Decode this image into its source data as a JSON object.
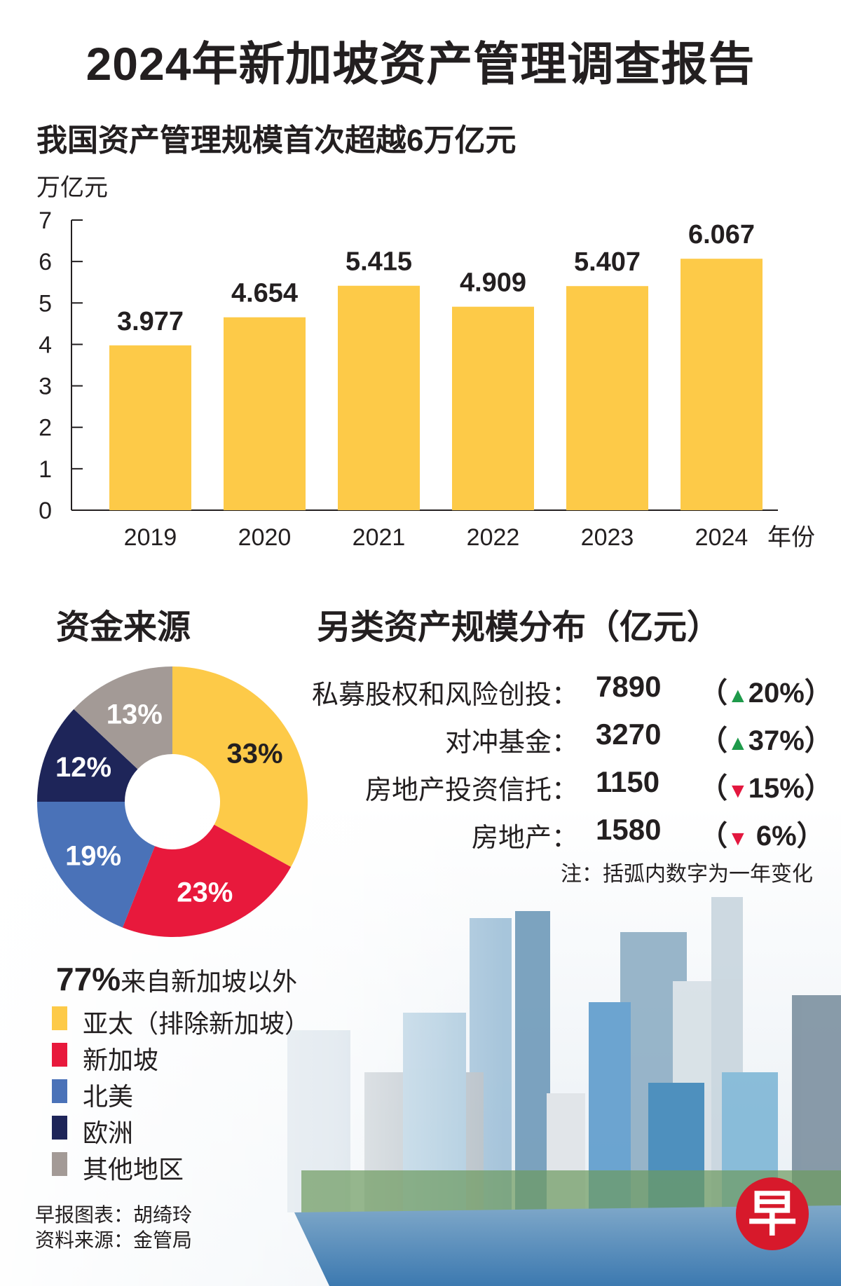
{
  "title": "2024年新加坡资产管理调查报告",
  "chart_data": [
    {
      "type": "bar",
      "title": "我国资产管理规模首次超越6万亿元",
      "ylabel": "万亿元",
      "xlabel": "年份",
      "categories": [
        "2019",
        "2020",
        "2021",
        "2022",
        "2023",
        "2024"
      ],
      "values": [
        3.977,
        4.654,
        5.415,
        4.909,
        5.407,
        6.067
      ],
      "value_labels": [
        "3.977",
        "4.654",
        "5.415",
        "4.909",
        "5.407",
        "6.067"
      ],
      "yticks": [
        "0",
        "1",
        "2",
        "3",
        "4",
        "5",
        "6",
        "7"
      ],
      "ylim": [
        0,
        7
      ],
      "bar_color": "#fdca48",
      "grid": false
    },
    {
      "type": "pie",
      "title": "资金来源",
      "categories": [
        "亚太（排除新加坡）",
        "新加坡",
        "北美",
        "欧洲",
        "其他地区"
      ],
      "values": [
        33,
        23,
        19,
        12,
        13
      ],
      "value_labels": [
        "33%",
        "23%",
        "19%",
        "12%",
        "13%"
      ],
      "colors": [
        "#fdca48",
        "#e8193c",
        "#4a72b8",
        "#1e2559",
        "#a39a96"
      ],
      "label_colors": [
        "#231f20",
        "#ffffff",
        "#ffffff",
        "#ffffff",
        "#ffffff"
      ],
      "donut": true,
      "legend_placement": "bottom-left",
      "summary_value": "77%",
      "summary_text": "来自新加坡以外"
    }
  ],
  "alt_assets": {
    "title": "另类资产规模分布（亿元）",
    "rows": [
      {
        "label": "私募股权和风险创投：",
        "value": "7890",
        "open": "（",
        "dir": "▲",
        "change": "20%",
        "close": "）"
      },
      {
        "label": "对冲基金：",
        "value": "3270",
        "open": "（",
        "dir": "▲",
        "change": "37%",
        "close": "）"
      },
      {
        "label": "房地产投资信托：",
        "value": "1150",
        "open": "（",
        "dir": "▼",
        "change": "15%",
        "close": "）"
      },
      {
        "label": "房地产：",
        "value": "1580",
        "open": "（",
        "dir": "▼",
        "change": " 6%",
        "close": "）"
      }
    ],
    "note": "注：括弧内数字为一年变化",
    "up_color": "#1e9a4a",
    "down_color": "#e3173e"
  },
  "footer": {
    "credit": "早报图表：胡绮玲",
    "source": "资料来源：金管局"
  },
  "logo": "早"
}
